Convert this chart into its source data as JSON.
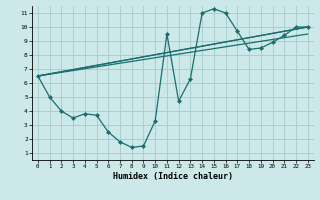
{
  "xlabel": "Humidex (Indice chaleur)",
  "bg_color": "#cce8e8",
  "grid_color": "#aacece",
  "line_color": "#1a6e6e",
  "xlim": [
    -0.5,
    23.5
  ],
  "ylim": [
    0.5,
    11.5
  ],
  "xticks": [
    0,
    1,
    2,
    3,
    4,
    5,
    6,
    7,
    8,
    9,
    10,
    11,
    12,
    13,
    14,
    15,
    16,
    17,
    18,
    19,
    20,
    21,
    22,
    23
  ],
  "yticks": [
    1,
    2,
    3,
    4,
    5,
    6,
    7,
    8,
    9,
    10,
    11
  ],
  "main_series_x": [
    0,
    1,
    2,
    3,
    4,
    5,
    6,
    7,
    8,
    9,
    10,
    11,
    12,
    13,
    14,
    15,
    16,
    17,
    18,
    19,
    20,
    21,
    22,
    23
  ],
  "main_series_y": [
    6.5,
    5.0,
    4.0,
    3.5,
    3.8,
    3.7,
    2.5,
    1.8,
    1.4,
    1.5,
    3.3,
    9.5,
    4.7,
    6.3,
    11.0,
    11.3,
    11.0,
    9.7,
    8.4,
    8.5,
    8.9,
    9.4,
    10.0,
    10.0
  ],
  "straight_lines": [
    {
      "x": [
        0,
        23
      ],
      "y": [
        6.5,
        9.5
      ]
    },
    {
      "x": [
        0,
        23
      ],
      "y": [
        6.5,
        10.0
      ]
    },
    {
      "x": [
        0,
        23
      ],
      "y": [
        6.5,
        10.0
      ]
    }
  ]
}
